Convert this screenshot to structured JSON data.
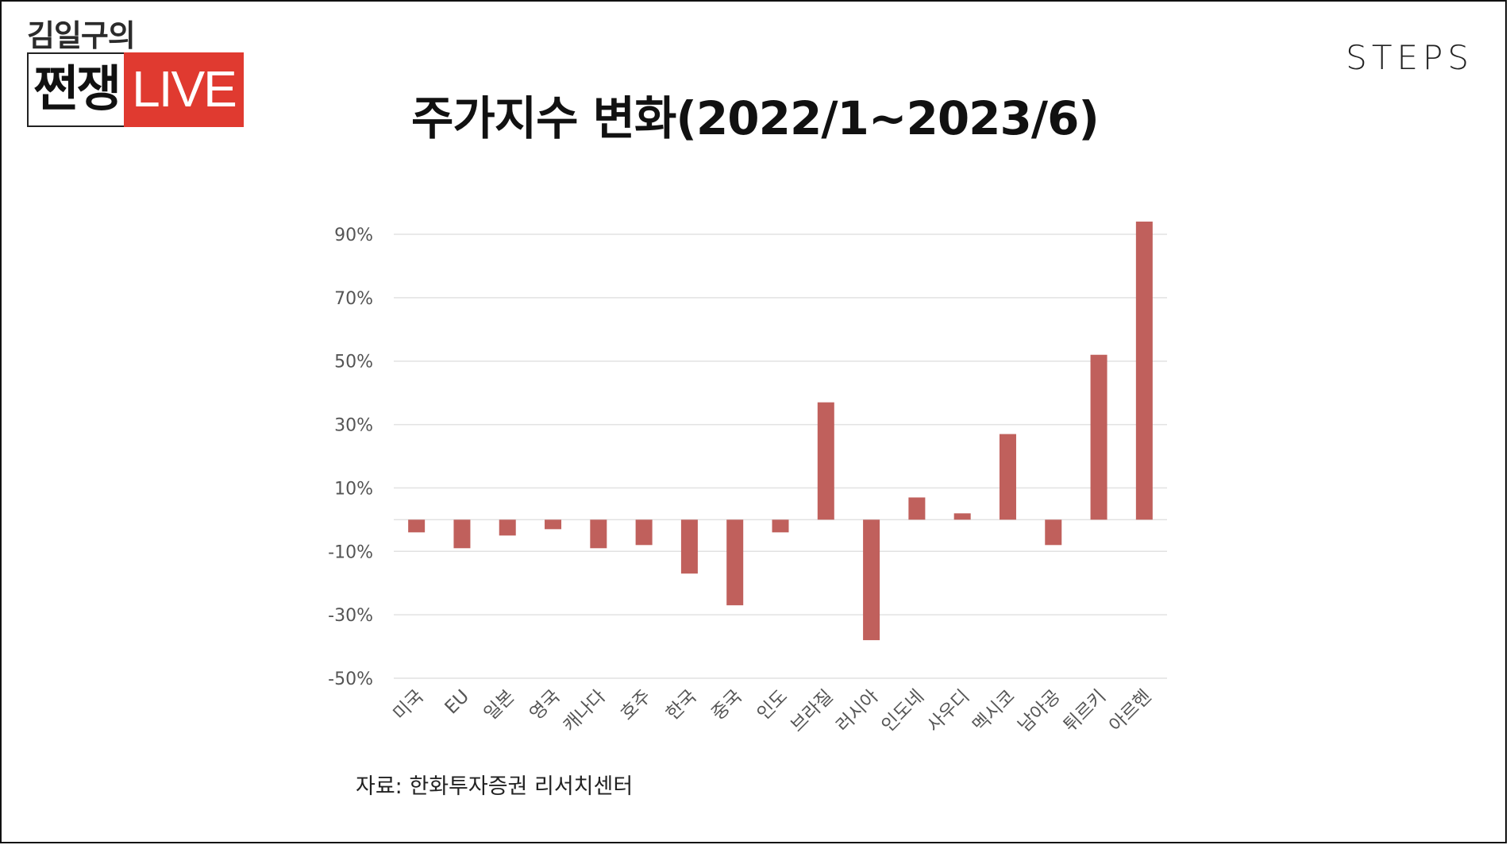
{
  "logo": {
    "top_text": "김일구의",
    "main_text": "쩐쟁",
    "live_text": "LIVE"
  },
  "brand": "STEPS",
  "title": "주가지수 변화(2022/1~2023/6)",
  "source": "자료: 한화투자증권 리서치센터",
  "colors": {
    "bar": "#c0605c",
    "grid": "#e2e2e2",
    "tick_text": "#555555",
    "live_bg": "#e03a30"
  },
  "chart_data": {
    "type": "bar",
    "title": "주가지수 변화(2022/1~2023/6)",
    "categories": [
      "미국",
      "EU",
      "일본",
      "영국",
      "캐나다",
      "호주",
      "한국",
      "중국",
      "인도",
      "브라질",
      "러시아",
      "인도네",
      "사우디",
      "멕시코",
      "남아공",
      "튀르키",
      "아르헨"
    ],
    "values": [
      -4,
      -9,
      -5,
      -3,
      -9,
      -8,
      -17,
      -27,
      -4,
      37,
      -38,
      7,
      2,
      27,
      -8,
      52,
      94
    ],
    "yticks": [
      90,
      70,
      50,
      30,
      10,
      -10,
      -30,
      -50
    ],
    "ytick_labels": [
      "90%",
      "70%",
      "50%",
      "30%",
      "10%",
      "-10%",
      "-30%",
      "-50%"
    ],
    "ylim": [
      -50,
      95
    ],
    "xlabel": "",
    "ylabel": "",
    "grid": true,
    "legend": "none"
  }
}
